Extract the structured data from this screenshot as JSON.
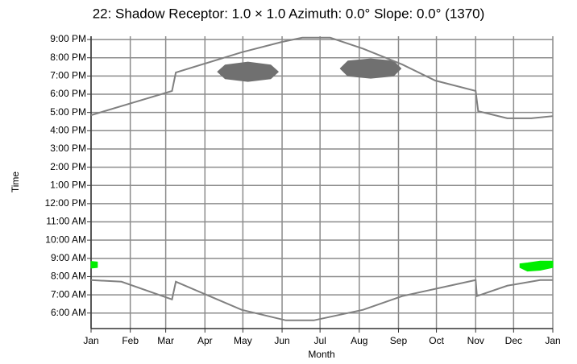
{
  "chart_data": {
    "type": "line",
    "title": "22: Shadow  Receptor: 1.0 × 1.0  Azimuth: 0.0°  Slope: 0.0° (1370)",
    "x_label": "Month",
    "y_label": "Time",
    "xlim": [
      0,
      365
    ],
    "xticks": [
      {
        "value": 0,
        "label": "Jan"
      },
      {
        "value": 31,
        "label": "Feb"
      },
      {
        "value": 59,
        "label": "Mar"
      },
      {
        "value": 90,
        "label": "Apr"
      },
      {
        "value": 120,
        "label": "May"
      },
      {
        "value": 151,
        "label": "Jun"
      },
      {
        "value": 181,
        "label": "Jul"
      },
      {
        "value": 212,
        "label": "Aug"
      },
      {
        "value": 243,
        "label": "Sep"
      },
      {
        "value": 273,
        "label": "Oct"
      },
      {
        "value": 304,
        "label": "Nov"
      },
      {
        "value": 334,
        "label": "Dec"
      },
      {
        "value": 365,
        "label": "Jan"
      }
    ],
    "ylim": [
      5.15,
      21.18
    ],
    "yticks": [
      {
        "value": 21,
        "label": "9:00 PM"
      },
      {
        "value": 20,
        "label": "8:00 PM"
      },
      {
        "value": 19,
        "label": "7:00 PM"
      },
      {
        "value": 18,
        "label": "6:00 PM"
      },
      {
        "value": 17,
        "label": "5:00 PM"
      },
      {
        "value": 16,
        "label": "4:00 PM"
      },
      {
        "value": 15,
        "label": "3:00 PM"
      },
      {
        "value": 14,
        "label": "2:00 PM"
      },
      {
        "value": 13,
        "label": "1:00 PM"
      },
      {
        "value": 12,
        "label": "12:00 PM"
      },
      {
        "value": 11,
        "label": "11:00 AM"
      },
      {
        "value": 10,
        "label": "10:00 AM"
      },
      {
        "value": 9,
        "label": "9:00 AM"
      },
      {
        "value": 8,
        "label": "8:00 AM"
      },
      {
        "value": 7,
        "label": "7:00 AM"
      },
      {
        "value": 6,
        "label": "6:00 AM"
      }
    ],
    "grid": true,
    "series": [
      {
        "color": "#808080",
        "x": [
          0,
          64,
          67,
          119,
          151,
          167,
          189,
          215,
          246,
          272,
          304,
          306,
          329,
          348,
          365
        ],
        "values": [
          16.85,
          18.18,
          19.19,
          20.3,
          20.87,
          21.1,
          21.1,
          20.5,
          19.63,
          18.75,
          18.18,
          17.07,
          16.68,
          16.68,
          16.8
        ]
      },
      {
        "color": "#808080",
        "x": [
          0,
          24,
          64,
          67,
          119,
          154,
          176,
          215,
          246,
          304,
          305,
          329,
          355,
          365
        ],
        "values": [
          7.81,
          7.72,
          6.75,
          7.72,
          6.18,
          5.6,
          5.6,
          6.18,
          6.93,
          7.81,
          6.93,
          7.5,
          7.81,
          7.81
        ]
      }
    ],
    "patches": [
      {
        "color": "#707070",
        "x": [
          100,
          106,
          124,
          142,
          148
        ],
        "low": [
          19.23,
          18.85,
          18.7,
          18.85,
          19.23
        ],
        "high": [
          19.23,
          19.6,
          19.76,
          19.6,
          19.23
        ]
      },
      {
        "color": "#707070",
        "x": [
          197,
          203,
          221,
          239,
          245
        ],
        "low": [
          19.41,
          19.0,
          18.88,
          19.0,
          19.41
        ],
        "high": [
          19.41,
          19.82,
          19.94,
          19.82,
          19.41
        ]
      },
      {
        "color": "#00ee00",
        "x": [
          0,
          5
        ],
        "low": [
          8.47,
          8.5
        ],
        "high": [
          8.83,
          8.8
        ]
      },
      {
        "color": "#00ee00",
        "x": [
          339,
          345,
          355,
          365
        ],
        "low": [
          8.5,
          8.3,
          8.35,
          8.5
        ],
        "high": [
          8.7,
          8.75,
          8.85,
          8.85
        ]
      }
    ]
  }
}
